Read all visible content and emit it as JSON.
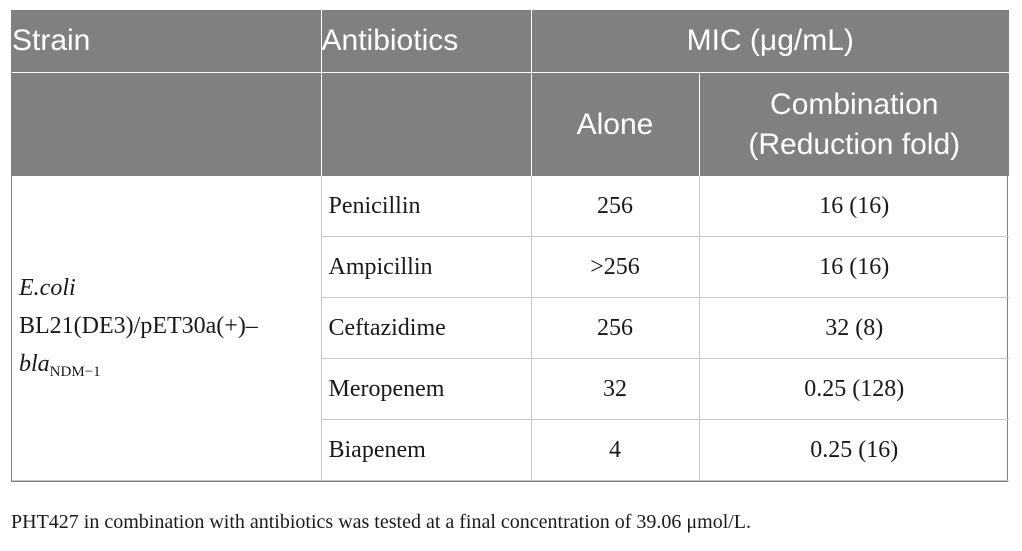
{
  "table": {
    "header": {
      "strain": "Strain",
      "antibiotics": "Antibiotics",
      "mic": "MIC (μg/mL)",
      "alone": "Alone",
      "combination_line1": "Combination",
      "combination_line2": "(Reduction fold)"
    },
    "strain": {
      "line1": "E.coli",
      "line2": "BL21(DE3)/pET30a(+)–",
      "gene": "bla",
      "gene_subscript": "NDM−1"
    },
    "rows": [
      {
        "antibiotic": "Penicillin",
        "alone": "256",
        "combination": "16 (16)"
      },
      {
        "antibiotic": "Ampicillin",
        "alone": ">256",
        "combination": "16 (16)"
      },
      {
        "antibiotic": "Ceftazidime",
        "alone": "256",
        "combination": "32 (8)"
      },
      {
        "antibiotic": "Meropenem",
        "alone": "32",
        "combination": "0.25 (128)"
      },
      {
        "antibiotic": "Biapenem",
        "alone": "4",
        "combination": "0.25 (16)"
      }
    ]
  },
  "footnote": "PHT427 in combination with antibiotics was tested at a final concentration of 39.06 μmol/L.",
  "colors": {
    "header_bg": "#808080",
    "grid": "#c6c6c6"
  }
}
